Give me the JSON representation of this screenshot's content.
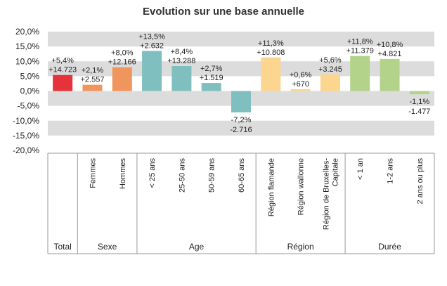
{
  "chart_data": {
    "type": "bar",
    "title": "Evolution sur une base annuelle",
    "ylim": [
      -0.2,
      0.2
    ],
    "yticks": [
      "-20,0%",
      "-15,0%",
      "-10,0%",
      "-5,0%",
      "0,0%",
      "5,0%",
      "10,0%",
      "15,0%",
      "20,0%"
    ],
    "grid": true,
    "categories": [
      "Total",
      "Femmes",
      "Hommes",
      "< 25 ans",
      "25-50 ans",
      "50-59 ans",
      "60-65 ans",
      "Région flamande",
      "Région wallonne",
      "Région de Bruxelles-Capitale",
      "< 1 an",
      "1-2 ans",
      "2 ans ou plus"
    ],
    "values": [
      0.054,
      0.021,
      0.08,
      0.135,
      0.084,
      0.027,
      -0.072,
      0.113,
      0.006,
      0.056,
      0.118,
      0.108,
      -0.011
    ],
    "pct_labels": [
      "+5,4%",
      "+2,1%",
      "+8,0%",
      "+13,5%",
      "+8,4%",
      "+2,7%",
      "-7,2%",
      "+11,3%",
      "+0,6%",
      "+5,6%",
      "+11,8%",
      "+10,8%",
      "-1,1%"
    ],
    "abs_labels": [
      "+14.723",
      "+2.557",
      "+12.166",
      "+2.632",
      "+13.288",
      "+1.519",
      "-2.716",
      "+10.808",
      "+670",
      "+3.245",
      "+11.379",
      "+4.821",
      "-1.477"
    ],
    "groups": [
      {
        "name": "Total",
        "count": 1,
        "color": "#e5323b"
      },
      {
        "name": "Sexe",
        "count": 2,
        "color": "#f0955d"
      },
      {
        "name": "Age",
        "count": 4,
        "color": "#7fbfbf"
      },
      {
        "name": "Région",
        "count": 3,
        "color": "#fcd58f"
      },
      {
        "name": "Durée",
        "count": 3,
        "color": "#b3d38a"
      }
    ]
  }
}
